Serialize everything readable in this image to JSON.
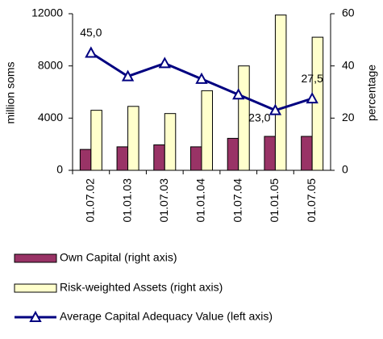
{
  "chart_data": {
    "type": "bar-line",
    "categories": [
      "01.07.02",
      "01.01.03",
      "01.07.03",
      "01.01.04",
      "01.07.04",
      "01.01.05",
      "01.07.05"
    ],
    "ylabel": "million soms",
    "y2label": "percentage",
    "ylim": [
      0,
      12000
    ],
    "yticks": [
      0,
      4000,
      8000,
      12000
    ],
    "y2lim": [
      0,
      60
    ],
    "y2ticks": [
      0,
      20,
      40,
      60
    ],
    "series": [
      {
        "name": "Own Capital (right axis)",
        "type": "bar",
        "color": "#993366",
        "values": [
          1600,
          1800,
          1950,
          1800,
          2450,
          2600,
          2600
        ]
      },
      {
        "name": "Risk-weighted Assets (right axis)",
        "type": "bar",
        "color": "#ffffcc",
        "values": [
          4600,
          4900,
          4350,
          6100,
          8000,
          11900,
          10200
        ]
      },
      {
        "name": "Average Capital Adequacy Value (left axis)",
        "type": "line",
        "axis": "y2",
        "color": "#000080",
        "values": [
          45.0,
          36,
          41,
          35,
          29,
          23.0,
          27.5
        ],
        "value_labels": [
          "45,0",
          null,
          null,
          null,
          null,
          "23,0",
          "27,5"
        ]
      }
    ]
  }
}
